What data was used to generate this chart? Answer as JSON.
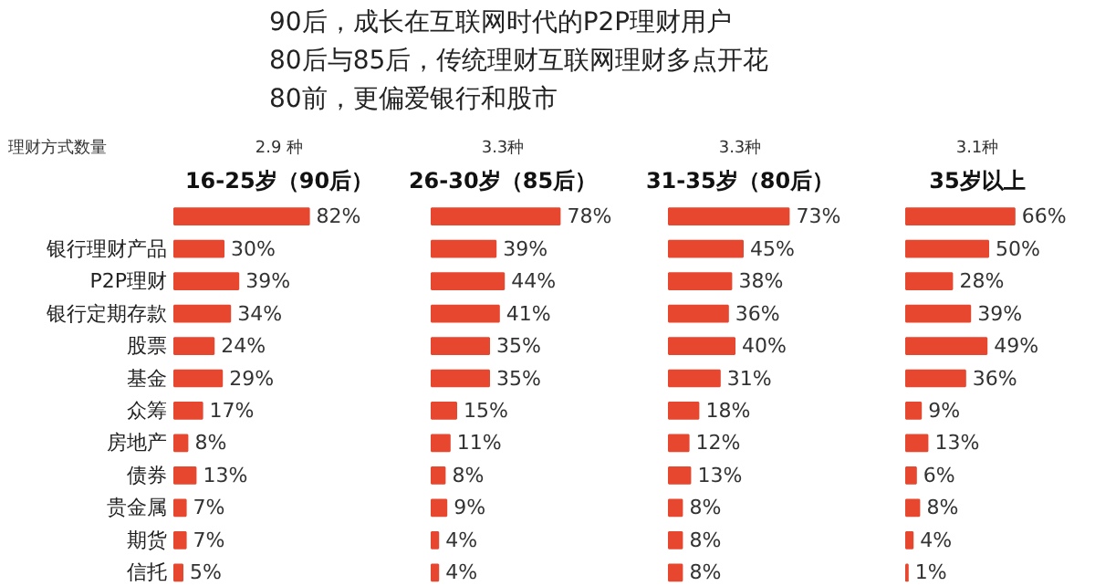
{
  "chart_data": [
    {
      "type": "other",
      "annotations": [
        "90后，成长在互联网时代的P2P理财用户",
        "80后与85后，传统理财互联网理财多点开花",
        "80前，更偏爱银行和股市"
      ]
    },
    {
      "type": "bar",
      "orientation": "horizontal",
      "tick_labels": "y",
      "title": "16-25岁（90后）",
      "subtitle": "2.9 种",
      "annotations": [
        "理财方式数量"
      ],
      "categories": [
        null,
        "银行理财产品",
        "P2P理财",
        "银行定期存款",
        "股票",
        "基金",
        "众筹",
        "房地产",
        "债券",
        "贵金属",
        "期货",
        "信托"
      ],
      "series": [
        {
          "color": "#e8472f",
          "values": [
            82,
            30,
            39,
            34,
            24,
            29,
            17,
            8,
            13,
            7,
            7,
            5
          ],
          "value_labels": [
            "82%",
            "30%",
            "39%",
            "34%",
            "24%",
            "29%",
            "17%",
            "8%",
            "13%",
            "7%",
            "7%",
            "5%"
          ]
        }
      ]
    },
    {
      "type": "bar",
      "orientation": "horizontal",
      "tick_labels": false,
      "title": "26-30岁（85后）",
      "subtitle": "3.3种",
      "categories": [
        null,
        null,
        null,
        null,
        null,
        null,
        null,
        null,
        null,
        null,
        null,
        null
      ],
      "series": [
        {
          "color": "#e8472f",
          "values": [
            78,
            39,
            44,
            41,
            35,
            35,
            15,
            11,
            8,
            9,
            4,
            4
          ],
          "value_labels": [
            "78%",
            "39%",
            "44%",
            "41%",
            "35%",
            "35%",
            "15%",
            "11%",
            "8%",
            "9%",
            "4%",
            "4%"
          ]
        }
      ]
    },
    {
      "type": "bar",
      "orientation": "horizontal",
      "tick_labels": false,
      "title": "31-35岁（80后）",
      "subtitle": "3.3种",
      "categories": [
        null,
        null,
        null,
        null,
        null,
        null,
        null,
        null,
        null,
        null,
        null,
        null
      ],
      "series": [
        {
          "color": "#e8472f",
          "values": [
            73,
            45,
            38,
            36,
            40,
            31,
            18,
            12,
            13,
            8,
            8,
            8
          ],
          "value_labels": [
            "73%",
            "45%",
            "38%",
            "36%",
            "40%",
            "31%",
            "18%",
            "12%",
            "13%",
            "8%",
            "8%",
            "8%"
          ]
        }
      ]
    },
    {
      "type": "bar",
      "orientation": "horizontal",
      "tick_labels": false,
      "title": "35岁以上",
      "subtitle": "3.1种",
      "categories": [
        null,
        null,
        null,
        null,
        null,
        null,
        null,
        null,
        null,
        null,
        null,
        null
      ],
      "series": [
        {
          "color": "#e8472f",
          "values": [
            66,
            50,
            28,
            39,
            49,
            36,
            9,
            13,
            6,
            8,
            4,
            1
          ],
          "value_labels": [
            "66%",
            "50%",
            "28%",
            "39%",
            "49%",
            "36%",
            "9%",
            "13%",
            "6%",
            "8%",
            "4%",
            "1%"
          ]
        }
      ]
    }
  ]
}
